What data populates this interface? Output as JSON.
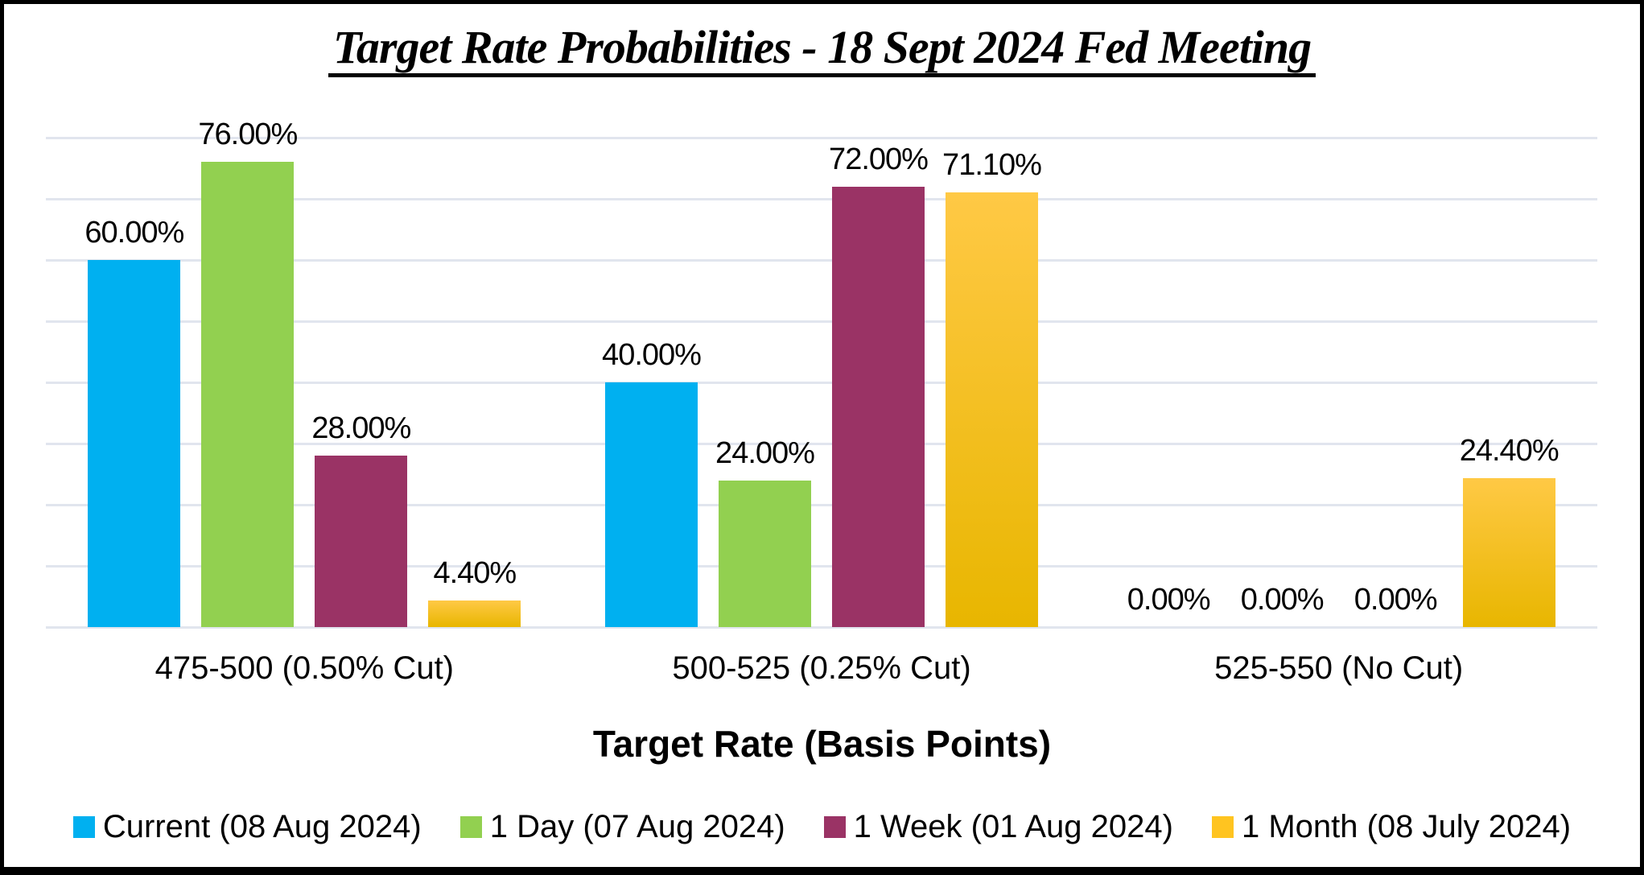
{
  "title": "Target Rate Probabilities - 18 Sept 2024 Fed Meeting",
  "chart_data": {
    "type": "bar",
    "title": "Target Rate Probabilities - 18 Sept 2024 Fed Meeting",
    "xlabel": "Target Rate (Basis Points)",
    "ylabel": "",
    "categories": [
      "475-500 (0.50% Cut)",
      "500-525 (0.25% Cut)",
      "525-550 (No Cut)"
    ],
    "series": [
      {
        "name": "Current (08 Aug 2024)",
        "color": "#00B0F0",
        "values": [
          60.0,
          40.0,
          0.0
        ]
      },
      {
        "name": "1 Day (07 Aug 2024)",
        "color": "#92D050",
        "values": [
          76.0,
          24.0,
          0.0
        ]
      },
      {
        "name": "1 Week (01 Aug 2024)",
        "color": "#9A3365",
        "values": [
          28.0,
          72.0,
          0.0
        ]
      },
      {
        "name": "1 Month (08 July 2024)",
        "color": "#FFC420",
        "gradient": [
          "#FFC945",
          "#E8B600"
        ],
        "values": [
          4.4,
          71.1,
          24.4
        ]
      }
    ],
    "data_labels": [
      [
        "60.00%",
        "76.00%",
        "28.00%",
        "4.40%"
      ],
      [
        "40.00%",
        "24.00%",
        "72.00%",
        "71.10%"
      ],
      [
        "0.00%",
        "0.00%",
        "0.00%",
        "24.40%"
      ]
    ],
    "ylim": [
      0,
      80
    ],
    "gridline_step": 10,
    "grid": "horizontal",
    "gridline_color": "#e1e5ee",
    "legend_position": "bottom",
    "y_tick_labels_visible": false
  }
}
